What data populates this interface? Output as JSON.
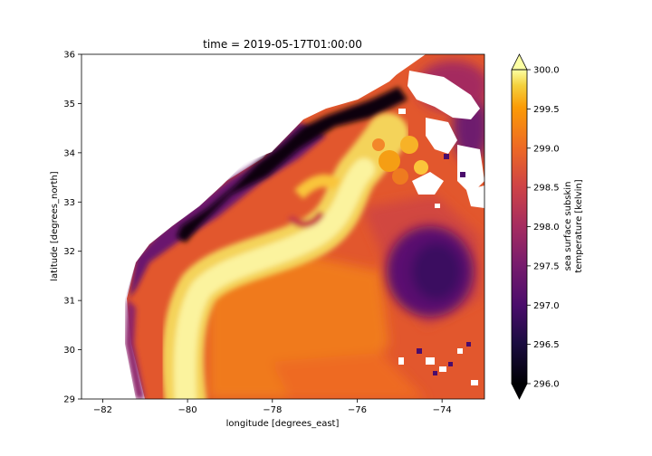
{
  "chart_data": {
    "type": "heatmap",
    "title": "time = 2019-05-17T01:00:00",
    "xlabel": "longitude [degrees_east]",
    "ylabel": "latitude [degrees_north]",
    "xlim": [
      -82.5,
      -73.0
    ],
    "ylim": [
      29,
      36
    ],
    "xticks": [
      -82,
      -80,
      -78,
      -76,
      -74
    ],
    "yticks": [
      29,
      30,
      31,
      32,
      33,
      34,
      35,
      36
    ],
    "colorbar": {
      "label_line1": "sea surface subskin",
      "label_line2": "temperature [kelvin]",
      "min": 296.0,
      "max": 300.0,
      "ticks": [
        "296.0",
        "296.5",
        "297.0",
        "297.5",
        "298.0",
        "298.5",
        "299.0",
        "299.5",
        "300.0"
      ],
      "extend": "both",
      "colormap": "inferno"
    },
    "missing_data_color": "#ffffff",
    "grid": false
  }
}
